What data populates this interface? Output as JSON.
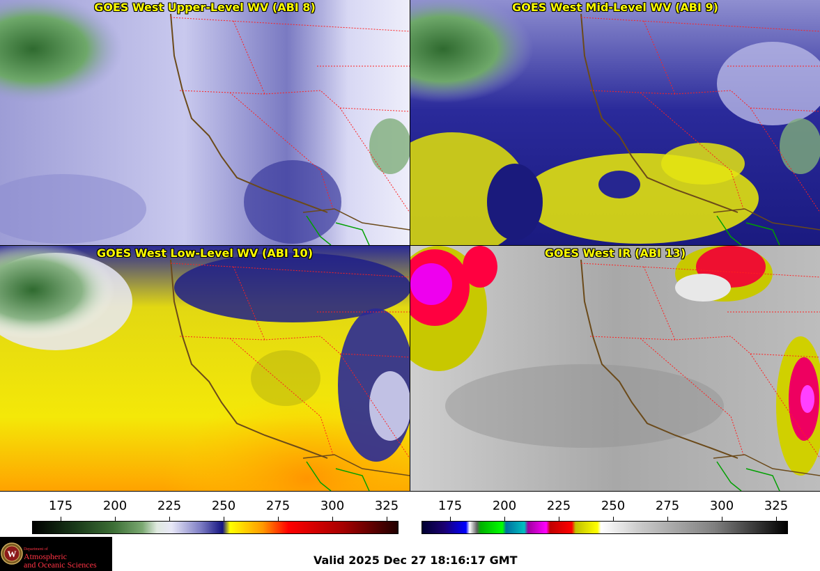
{
  "panels": [
    {
      "title": "GOES West Upper-Level WV (ABI 8)"
    },
    {
      "title": "GOES West Mid-Level WV (ABI 9)"
    },
    {
      "title": "GOES West Low-Level WV (ABI 10)"
    },
    {
      "title": "GOES West IR (ABI 13)"
    }
  ],
  "colorbars": {
    "left_ticks": [
      "175",
      "200",
      "225",
      "250",
      "275",
      "300",
      "325"
    ],
    "right_ticks": [
      "175",
      "200",
      "225",
      "250",
      "275",
      "300",
      "325"
    ]
  },
  "logo": {
    "line1": "Department of",
    "line2": "Atmospheric",
    "line3": "and Oceanic Sciences"
  },
  "valid_time": "Valid 2025 Dec 27 18:16:17 GMT",
  "colors": {
    "title_text": "#ffff00",
    "border_state": "#ff2020",
    "coast": "#6b4a1a",
    "mexico_border": "#00a000"
  }
}
